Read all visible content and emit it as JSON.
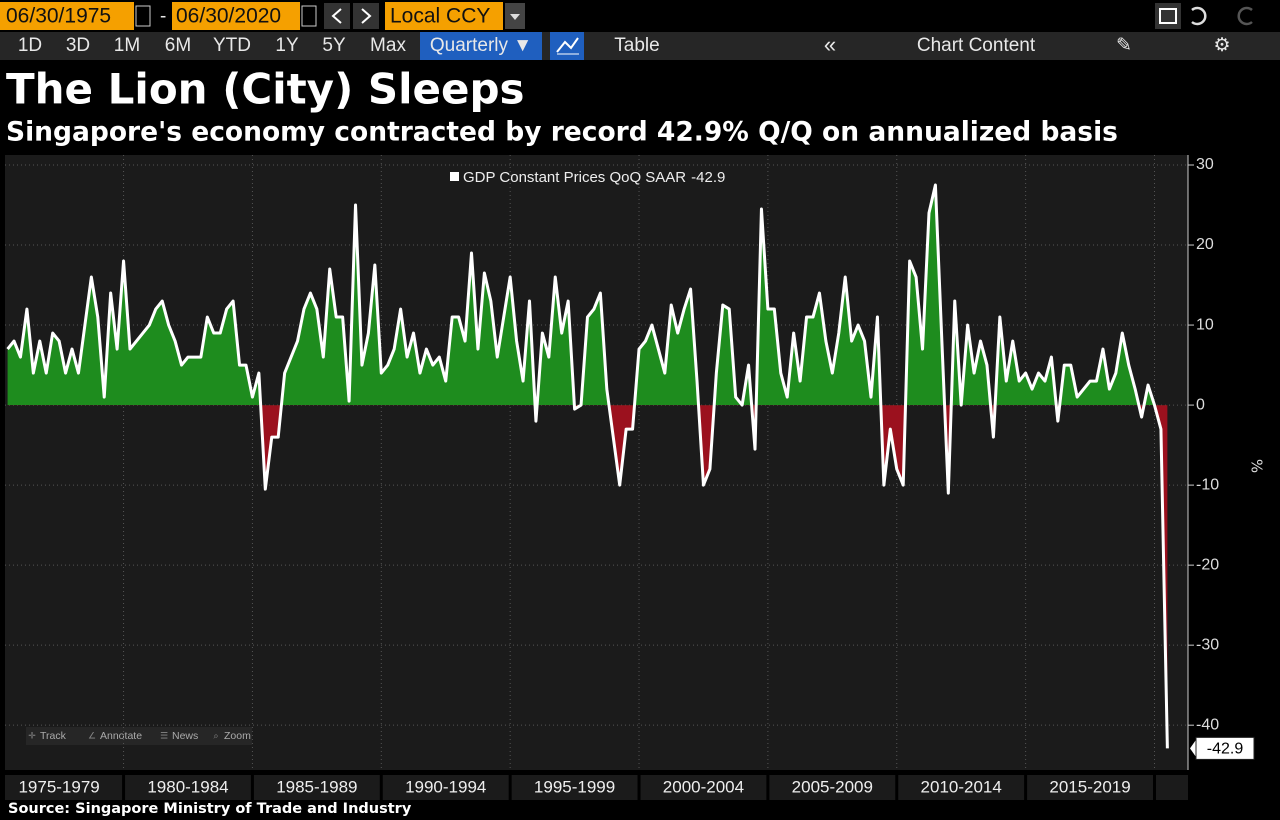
{
  "toolbar": {
    "start_date": "06/30/1975",
    "separator": "-",
    "end_date": "06/30/2020",
    "currency": "Local CCY",
    "ranges": [
      "1D",
      "3D",
      "1M",
      "6M",
      "YTD",
      "1Y",
      "5Y",
      "Max"
    ],
    "frequency": "Quarterly ▼",
    "table": "Table",
    "chart_content": "Chart Content"
  },
  "chart_tools": [
    "Track",
    "Annotate",
    "News",
    "Zoom"
  ],
  "chart_data": {
    "type": "area-line",
    "title": "The Lion (City) Sleeps",
    "subtitle": "Singapore's economy contracted by record 42.9% Q/Q on annualized basis",
    "y_axis_label": "%",
    "source": "Source: Singapore Ministry of Trade and Industry",
    "positive_color": "#1e8c1e",
    "negative_color": "#9b111e",
    "xlim": [
      1975.4,
      2021.3
    ],
    "ylim": [
      -45.6,
      31.25
    ],
    "yticks": [
      30,
      20,
      10,
      0,
      -10,
      -20,
      -30,
      -40
    ],
    "xticks": [
      {
        "value": 1977.5,
        "label": "1975-1979"
      },
      {
        "value": 1982.5,
        "label": "1980-1984"
      },
      {
        "value": 1987.5,
        "label": "1985-1989"
      },
      {
        "value": 1992.5,
        "label": "1990-1994"
      },
      {
        "value": 1997.5,
        "label": "1995-1999"
      },
      {
        "value": 2002.5,
        "label": "2000-2004"
      },
      {
        "value": 2007.5,
        "label": "2005-2009"
      },
      {
        "value": 2012.5,
        "label": "2010-2014"
      },
      {
        "value": 2017.5,
        "label": "2015-2019"
      }
    ],
    "xgrid": [
      1980,
      1985,
      1990,
      1995,
      2000,
      2005,
      2010,
      2015,
      2020
    ],
    "grid": true,
    "x": [
      1975.5,
      1975.75,
      1976,
      1976.25,
      1976.5,
      1976.75,
      1977,
      1977.25,
      1977.5,
      1977.75,
      1978,
      1978.25,
      1978.5,
      1978.75,
      1979,
      1979.25,
      1979.5,
      1979.75,
      1980,
      1980.25,
      1980.5,
      1980.75,
      1981,
      1981.25,
      1981.5,
      1981.75,
      1982,
      1982.25,
      1982.5,
      1982.75,
      1983,
      1983.25,
      1983.5,
      1983.75,
      1984,
      1984.25,
      1984.5,
      1984.75,
      1985,
      1985.25,
      1985.5,
      1985.75,
      1986,
      1986.25,
      1986.5,
      1986.75,
      1987,
      1987.25,
      1987.5,
      1987.75,
      1988,
      1988.25,
      1988.5,
      1988.75,
      1989,
      1989.25,
      1989.5,
      1989.75,
      1990,
      1990.25,
      1990.5,
      1990.75,
      1991,
      1991.25,
      1991.5,
      1991.75,
      1992,
      1992.25,
      1992.5,
      1992.75,
      1993,
      1993.25,
      1993.5,
      1993.75,
      1994,
      1994.25,
      1994.5,
      1994.75,
      1995,
      1995.25,
      1995.5,
      1995.75,
      1996,
      1996.25,
      1996.5,
      1996.75,
      1997,
      1997.25,
      1997.5,
      1997.75,
      1998,
      1998.25,
      1998.5,
      1998.75,
      1999,
      1999.25,
      1999.5,
      1999.75,
      2000,
      2000.25,
      2000.5,
      2000.75,
      2001,
      2001.25,
      2001.5,
      2001.75,
      2002,
      2002.25,
      2002.5,
      2002.75,
      2003,
      2003.25,
      2003.5,
      2003.75,
      2004,
      2004.25,
      2004.5,
      2004.75,
      2005,
      2005.25,
      2005.5,
      2005.75,
      2006,
      2006.25,
      2006.5,
      2006.75,
      2007,
      2007.25,
      2007.5,
      2007.75,
      2008,
      2008.25,
      2008.5,
      2008.75,
      2009,
      2009.25,
      2009.5,
      2009.75,
      2010,
      2010.25,
      2010.5,
      2010.75,
      2011,
      2011.25,
      2011.5,
      2011.75,
      2012,
      2012.25,
      2012.5,
      2012.75,
      2013,
      2013.25,
      2013.5,
      2013.75,
      2014,
      2014.25,
      2014.5,
      2014.75,
      2015,
      2015.25,
      2015.5,
      2015.75,
      2016,
      2016.25,
      2016.5,
      2016.75,
      2017,
      2017.25,
      2017.5,
      2017.75,
      2018,
      2018.25,
      2018.5,
      2018.75,
      2019,
      2019.25,
      2019.5,
      2019.75,
      2020,
      2020.25,
      2020.5
    ],
    "series": [
      {
        "name": "GDP Constant Prices QoQ SAAR",
        "color": "#ffffff",
        "values": [
          7,
          8,
          6,
          12,
          4,
          8,
          4,
          9,
          8,
          4,
          7,
          4,
          10,
          16,
          11,
          1,
          14,
          7,
          18,
          7,
          8,
          9,
          10,
          12,
          13,
          10,
          8,
          5,
          6,
          6,
          6,
          11,
          9,
          9,
          12,
          13,
          5,
          5,
          1,
          4,
          -10.5,
          -4,
          -4,
          4,
          6,
          8,
          12,
          14,
          12,
          6,
          17,
          11,
          11,
          0.5,
          25,
          5,
          9,
          17.5,
          4,
          5,
          7,
          12,
          6,
          9,
          4,
          7,
          5,
          6,
          3,
          11,
          11,
          8,
          19,
          7,
          16.5,
          13,
          6,
          11,
          16,
          8,
          3,
          13,
          -2,
          9,
          6,
          16,
          9,
          13,
          -0.5,
          0,
          11,
          12,
          14,
          2,
          -4,
          -10,
          -3,
          -3,
          7,
          8,
          10,
          7,
          4,
          12.5,
          9,
          12,
          14.5,
          3,
          -10,
          -8,
          4,
          12.5,
          12,
          1,
          0,
          5,
          -5.5,
          24.5,
          12,
          12,
          4,
          1,
          9,
          3,
          11,
          11,
          14,
          8,
          4,
          9,
          16,
          8,
          10,
          8,
          1,
          11,
          -10,
          -3,
          -8,
          -10,
          18,
          16,
          7,
          24,
          27.5,
          8,
          -11,
          13,
          0,
          10,
          4,
          8,
          5,
          -4,
          11,
          3,
          8,
          3,
          4,
          2,
          4,
          3,
          6,
          -2,
          5,
          5,
          1,
          2,
          3,
          3,
          7,
          2,
          4,
          9,
          5,
          2,
          -1.5,
          2.5,
          0,
          -3,
          -42.9
        ]
      }
    ]
  }
}
